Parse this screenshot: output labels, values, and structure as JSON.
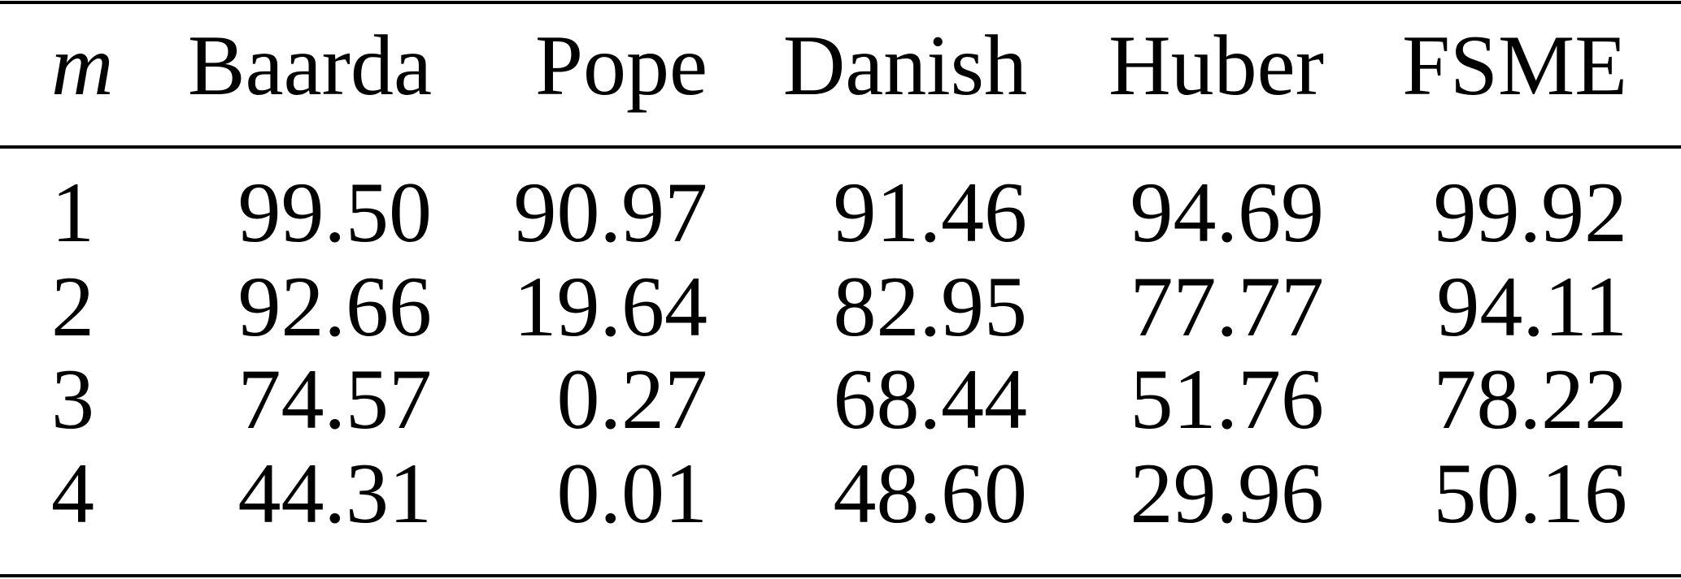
{
  "table": {
    "header": [
      "m",
      "Baarda",
      "Pope",
      "Danish",
      "Huber",
      "FSME"
    ],
    "rows": [
      [
        "1",
        "99.50",
        "90.97",
        "91.46",
        "94.69",
        "99.92"
      ],
      [
        "2",
        "92.66",
        "19.64",
        "82.95",
        "77.77",
        "94.11"
      ],
      [
        "3",
        "74.57",
        "0.27",
        "68.44",
        "51.76",
        "78.22"
      ],
      [
        "4",
        "44.31",
        "0.01",
        "48.60",
        "29.96",
        "50.16"
      ]
    ]
  }
}
